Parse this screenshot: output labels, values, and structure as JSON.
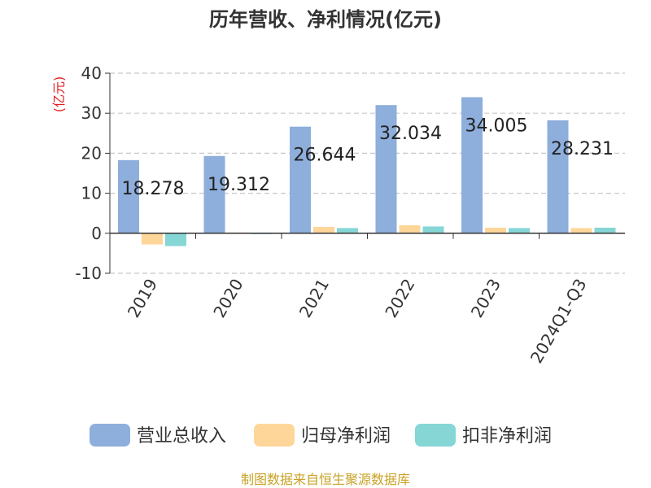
{
  "chart_data": {
    "type": "bar",
    "title": "历年营收、净利情况(亿元)",
    "ylabel": "(亿元)",
    "categories": [
      "2019",
      "2020",
      "2021",
      "2022",
      "2023",
      "2024Q1-Q3"
    ],
    "ylim": [
      -10,
      40
    ],
    "yticks": [
      -10,
      0,
      10,
      20,
      30,
      40
    ],
    "grid": true,
    "legend_position": "bottom",
    "series": [
      {
        "name": "营业总收入",
        "color": "#8EAEDC",
        "values": [
          18.278,
          19.312,
          26.644,
          32.034,
          34.005,
          28.231
        ]
      },
      {
        "name": "归母净利润",
        "color": "#FFD699",
        "values": [
          -2.8,
          0.2,
          1.6,
          2.0,
          1.4,
          1.3
        ]
      },
      {
        "name": "扣非净利润",
        "color": "#86D6D6",
        "values": [
          -3.2,
          -0.1,
          1.3,
          1.7,
          1.3,
          1.4
        ]
      }
    ],
    "data_labels": [
      "18.278",
      "19.312",
      "26.644",
      "32.034",
      "34.005",
      "28.231"
    ]
  },
  "source": "制图数据来自恒生聚源数据库",
  "colors": {
    "grid": "#C8C8C8",
    "axis": "#333333",
    "ylabel": "#E02020",
    "source": "#C9A227"
  }
}
